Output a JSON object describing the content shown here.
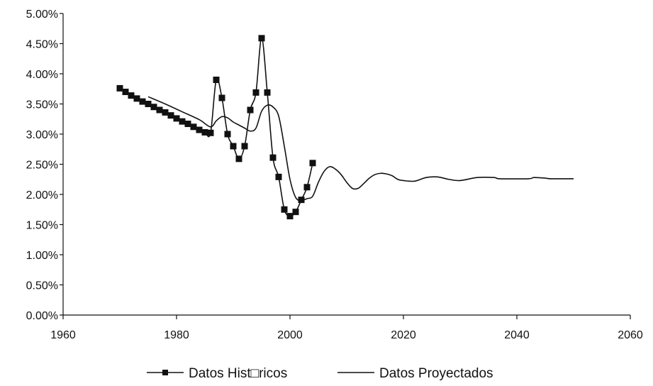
{
  "chart_data": {
    "type": "line",
    "title": "",
    "xlabel": "",
    "ylabel": "",
    "xlim": [
      1960,
      2060
    ],
    "ylim": [
      0,
      5
    ],
    "x_ticks": [
      "1960",
      "1980",
      "2000",
      "2020",
      "2040",
      "2060"
    ],
    "y_ticks": [
      "0.00%",
      "0.50%",
      "1.00%",
      "1.50%",
      "2.00%",
      "2.50%",
      "3.00%",
      "3.50%",
      "4.00%",
      "4.50%",
      "5.00%"
    ],
    "grid": false,
    "legend_position": "bottom",
    "series": [
      {
        "name": "Datos Hist□ricos",
        "marker": "square",
        "color": "#111111",
        "points": [
          [
            1970,
            3.76
          ],
          [
            1971,
            3.7
          ],
          [
            1972,
            3.64
          ],
          [
            1973,
            3.59
          ],
          [
            1974,
            3.54
          ],
          [
            1975,
            3.5
          ],
          [
            1976,
            3.45
          ],
          [
            1977,
            3.4
          ],
          [
            1978,
            3.36
          ],
          [
            1979,
            3.31
          ],
          [
            1980,
            3.26
          ],
          [
            1981,
            3.21
          ],
          [
            1982,
            3.17
          ],
          [
            1983,
            3.12
          ],
          [
            1984,
            3.07
          ],
          [
            1985,
            3.03
          ],
          [
            1986,
            3.02
          ],
          [
            1987,
            3.9
          ],
          [
            1988,
            3.6
          ],
          [
            1989,
            3.0
          ],
          [
            1990,
            2.8
          ],
          [
            1991,
            2.59
          ],
          [
            1992,
            2.8
          ],
          [
            1993,
            3.4
          ],
          [
            1994,
            3.69
          ],
          [
            1995,
            4.59
          ],
          [
            1996,
            3.69
          ],
          [
            1997,
            2.61
          ],
          [
            1998,
            2.29
          ],
          [
            1999,
            1.75
          ],
          [
            2000,
            1.64
          ],
          [
            2001,
            1.71
          ],
          [
            2002,
            1.91
          ],
          [
            2003,
            2.12
          ],
          [
            2004,
            2.52
          ]
        ]
      },
      {
        "name": "Datos Proyectados",
        "marker": "none",
        "color": "#111111",
        "points": [
          [
            1975,
            3.62
          ],
          [
            1978,
            3.5
          ],
          [
            1981,
            3.37
          ],
          [
            1984,
            3.24
          ],
          [
            1986,
            3.12
          ],
          [
            1987,
            3.22
          ],
          [
            1988,
            3.29
          ],
          [
            1989,
            3.27
          ],
          [
            1990,
            3.2
          ],
          [
            1991,
            3.15
          ],
          [
            1992,
            3.1
          ],
          [
            1993,
            3.05
          ],
          [
            1994,
            3.1
          ],
          [
            1995,
            3.38
          ],
          [
            1996,
            3.48
          ],
          [
            1997,
            3.45
          ],
          [
            1998,
            3.3
          ],
          [
            1999,
            2.8
          ],
          [
            2000,
            2.25
          ],
          [
            2001,
            1.95
          ],
          [
            2002,
            1.9
          ],
          [
            2003,
            1.93
          ],
          [
            2004,
            1.97
          ],
          [
            2005,
            2.2
          ],
          [
            2006,
            2.38
          ],
          [
            2007,
            2.46
          ],
          [
            2008,
            2.42
          ],
          [
            2009,
            2.33
          ],
          [
            2010,
            2.2
          ],
          [
            2011,
            2.1
          ],
          [
            2012,
            2.1
          ],
          [
            2013,
            2.18
          ],
          [
            2014,
            2.27
          ],
          [
            2015,
            2.33
          ],
          [
            2016,
            2.35
          ],
          [
            2017,
            2.34
          ],
          [
            2018,
            2.31
          ],
          [
            2019,
            2.25
          ],
          [
            2020,
            2.23
          ],
          [
            2022,
            2.22
          ],
          [
            2024,
            2.28
          ],
          [
            2026,
            2.29
          ],
          [
            2028,
            2.25
          ],
          [
            2030,
            2.23
          ],
          [
            2033,
            2.28
          ],
          [
            2036,
            2.28
          ],
          [
            2037,
            2.26
          ],
          [
            2042,
            2.26
          ],
          [
            2043,
            2.28
          ],
          [
            2045,
            2.27
          ],
          [
            2046,
            2.26
          ],
          [
            2050,
            2.26
          ]
        ]
      }
    ]
  }
}
